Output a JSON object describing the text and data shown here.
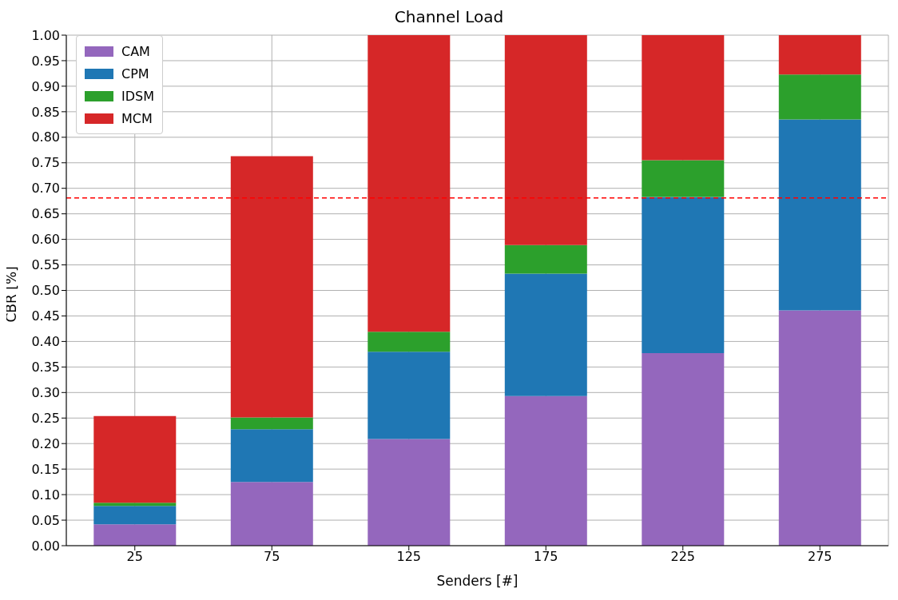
{
  "chart_data": {
    "type": "bar",
    "title": "Channel Load",
    "xlabel": "Senders [#]",
    "ylabel": "CBR [%]",
    "categories": [
      "25",
      "75",
      "125",
      "175",
      "225",
      "275"
    ],
    "stacked": true,
    "series": [
      {
        "name": "CAM",
        "color": "#9467bd",
        "values": [
          0.042,
          0.125,
          0.209,
          0.293,
          0.377,
          0.461
        ]
      },
      {
        "name": "CPM",
        "color": "#1f77b4",
        "values": [
          0.036,
          0.103,
          0.171,
          0.24,
          0.306,
          0.374
        ]
      },
      {
        "name": "IDSM",
        "color": "#2ca02c",
        "values": [
          0.006,
          0.023,
          0.039,
          0.056,
          0.072,
          0.088
        ]
      },
      {
        "name": "MCM",
        "color": "#d62728",
        "values": [
          0.17,
          0.512,
          0.581,
          0.411,
          0.245,
          0.077
        ]
      }
    ],
    "ylim": [
      0,
      1
    ],
    "yticks": [
      {
        "value": 0,
        "label": "0.00"
      },
      {
        "value": 0.05,
        "label": "0.05"
      },
      {
        "value": 0.1,
        "label": "0.10"
      },
      {
        "value": 0.15,
        "label": "0.15"
      },
      {
        "value": 0.2,
        "label": "0.20"
      },
      {
        "value": 0.25,
        "label": "0.25"
      },
      {
        "value": 0.3,
        "label": "0.30"
      },
      {
        "value": 0.35,
        "label": "0.35"
      },
      {
        "value": 0.4,
        "label": "0.40"
      },
      {
        "value": 0.45,
        "label": "0.45"
      },
      {
        "value": 0.5,
        "label": "0.50"
      },
      {
        "value": 0.55,
        "label": "0.55"
      },
      {
        "value": 0.6,
        "label": "0.60"
      },
      {
        "value": 0.65,
        "label": "0.65"
      },
      {
        "value": 0.7,
        "label": "0.70"
      },
      {
        "value": 0.75,
        "label": "0.75"
      },
      {
        "value": 0.8,
        "label": "0.80"
      },
      {
        "value": 0.85,
        "label": "0.85"
      },
      {
        "value": 0.9,
        "label": "0.90"
      },
      {
        "value": 0.95,
        "label": "0.95"
      },
      {
        "value": 1,
        "label": "1.00"
      }
    ],
    "ref_lines": [
      {
        "axis": "y",
        "value": 0.681,
        "color": "#ff0000",
        "line_style": "dashed"
      }
    ],
    "grid": true,
    "legend": "top left"
  }
}
